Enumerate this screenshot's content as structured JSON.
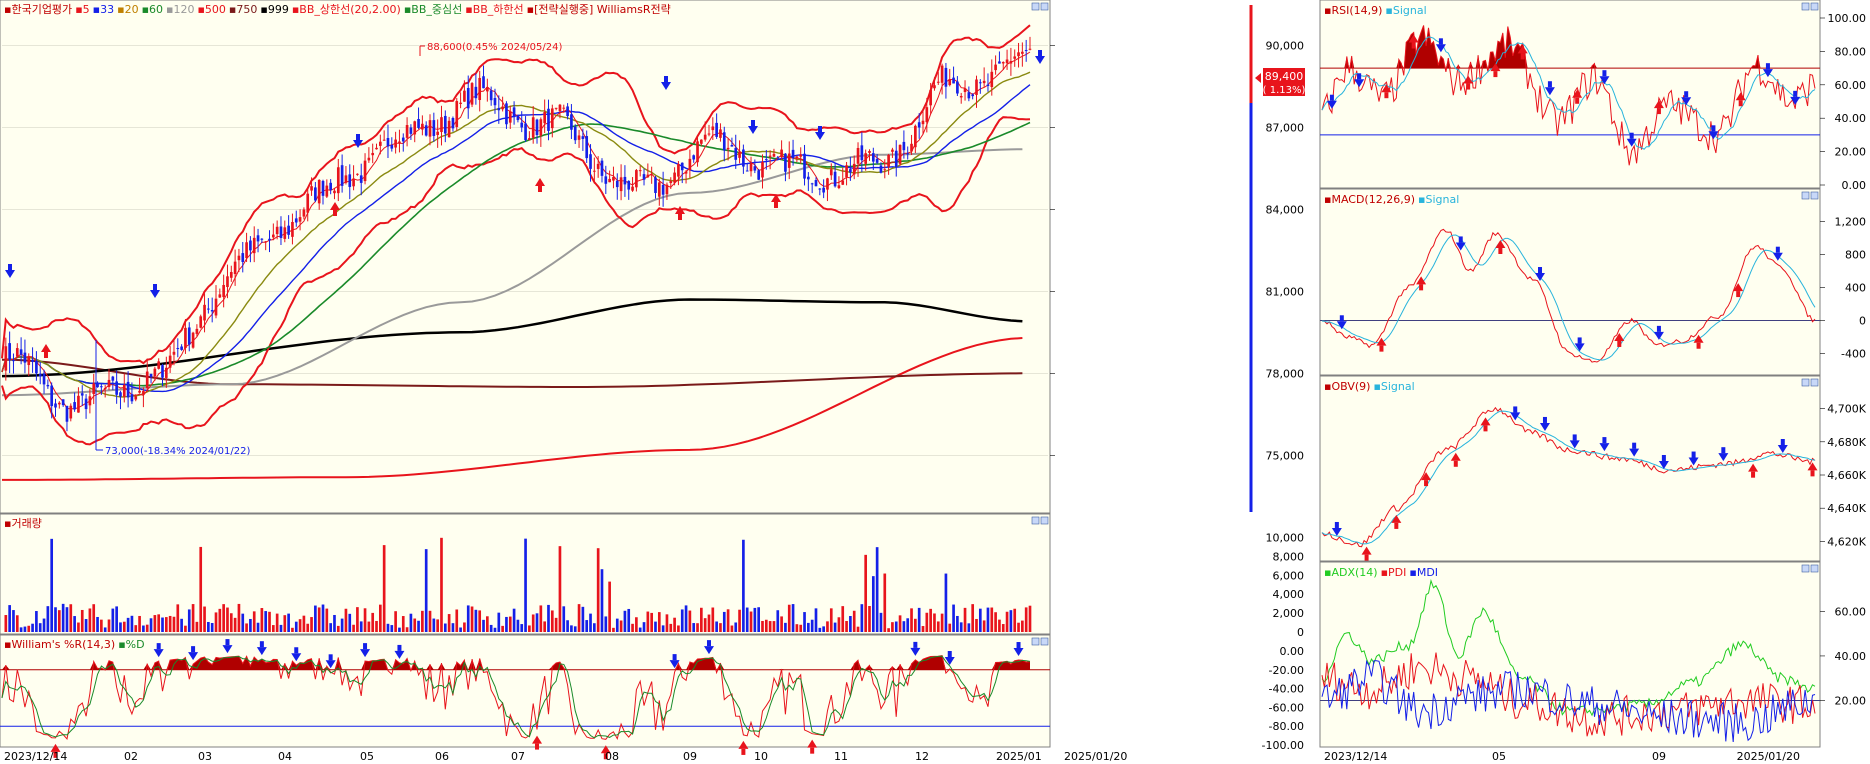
{
  "colors": {
    "bg": "#fffff0",
    "grid": "#d8d8c8",
    "red": "#e8141c",
    "blue": "#1420e8",
    "darkred": "#b00000",
    "green": "#1a8a2a",
    "olive": "#8a8a10",
    "gray": "#9a9a9a",
    "black": "#000000",
    "maroon": "#7a1a1a",
    "cyan": "#28b4dc"
  },
  "main_panel": {
    "legend": [
      {
        "text": "▪한국기업평가",
        "color": "#c00000"
      },
      {
        "text": "▪5",
        "color": "#e8141c"
      },
      {
        "text": "▪33",
        "color": "#1420e8"
      },
      {
        "text": "▪20",
        "color": "#c08000"
      },
      {
        "text": "▪60",
        "color": "#1a8a2a"
      },
      {
        "text": "▪120",
        "color": "#9a9a9a"
      },
      {
        "text": "▪500",
        "color": "#e8141c"
      },
      {
        "text": "▪750",
        "color": "#7a1a1a"
      },
      {
        "text": "▪999",
        "color": "#000000"
      },
      {
        "text": "▪BB_상한선(20,2.00)",
        "color": "#e8141c"
      },
      {
        "text": "▪BB_중심선",
        "color": "#1a8a2a"
      },
      {
        "text": "▪BB_하한선",
        "color": "#e8141c"
      },
      {
        "text": "▪[전략실행중] WilliamsR전략",
        "color": "#c00000"
      }
    ],
    "max_annotation": "88,600(0.45% 2024/05/24)",
    "min_annotation": "73,000(-18.34% 2024/01/22)",
    "price_tag": "89,400",
    "price_change": "( 1.13%)",
    "y_ticks": [
      "90,000",
      "87,000",
      "84,000",
      "81,000",
      "78,000",
      "75,000"
    ]
  },
  "volume_panel": {
    "legend": "▪거래량",
    "y_ticks": [
      "10,000",
      "8,000",
      "6,000",
      "4,000",
      "2,000",
      "0"
    ]
  },
  "williams_panel": {
    "legend": "▪William's %R(14,3)",
    "legend2": "▪%D",
    "y_ticks": [
      "0.00",
      "-20.00",
      "-40.00",
      "-60.00",
      "-80.00",
      "-100.00"
    ]
  },
  "x_axis_main": [
    "2023/12/14",
    "02",
    "03",
    "04",
    "05",
    "06",
    "07",
    "08",
    "09",
    "10",
    "11",
    "12",
    "2025/01",
    "2025/01/20"
  ],
  "rsi_panel": {
    "legend": "▪RSI(14,9)",
    "legend2": "▪Signal",
    "y_ticks": [
      "100.00",
      "80.00",
      "60.00",
      "40.00",
      "20.00",
      "0.00"
    ]
  },
  "macd_panel": {
    "legend": "▪MACD(12,26,9)",
    "legend2": "▪Signal",
    "y_ticks": [
      "1,200",
      "800",
      "400",
      "0",
      "-400"
    ]
  },
  "obv_panel": {
    "legend": "▪OBV(9)",
    "legend2": "▪Signal",
    "y_ticks": [
      "4,700K",
      "4,680K",
      "4,660K",
      "4,640K",
      "4,620K"
    ]
  },
  "adx_panel": {
    "legend": "▪ADX(14)",
    "legend2": "▪PDI",
    "legend3": "▪MDI",
    "y_ticks": [
      "60.00",
      "40.00",
      "20.00"
    ]
  },
  "x_axis_right": [
    "2023/12/14",
    "05",
    "09",
    "2025/01/20"
  ],
  "chart_data": [
    {
      "type": "candlestick",
      "title": "한국기업평가",
      "ylim": [
        73000,
        91000
      ],
      "x": [
        "2023/12",
        "2024/01",
        "2024/02",
        "2024/03",
        "2024/04",
        "2024/05",
        "2024/06",
        "2024/07",
        "2024/08",
        "2024/09",
        "2024/10",
        "2024/11",
        "2024/12",
        "2025/01"
      ],
      "close": [
        78500,
        76800,
        78000,
        82000,
        84500,
        86500,
        88000,
        87000,
        84600,
        86400,
        85400,
        85500,
        88500,
        89400
      ],
      "annotations": [
        {
          "text": "88,600(0.45% 2024/05/24)",
          "value": 88600
        },
        {
          "text": "73,000(-18.34% 2024/01/22)",
          "value": 73000
        }
      ]
    },
    {
      "type": "bar",
      "title": "거래량",
      "ylim": [
        0,
        11000
      ]
    },
    {
      "type": "line",
      "title": "William's %R(14,3)",
      "ylim": [
        -100,
        0
      ]
    },
    {
      "type": "line",
      "title": "RSI(14,9)",
      "ylim": [
        0,
        100
      ]
    },
    {
      "type": "line",
      "title": "MACD(12,26,9)",
      "ylim": [
        -600,
        1400
      ]
    },
    {
      "type": "line",
      "title": "OBV(9)",
      "ylim": [
        4610,
        4710
      ]
    },
    {
      "type": "line",
      "title": "ADX(14)",
      "ylim": [
        0,
        75
      ]
    }
  ]
}
